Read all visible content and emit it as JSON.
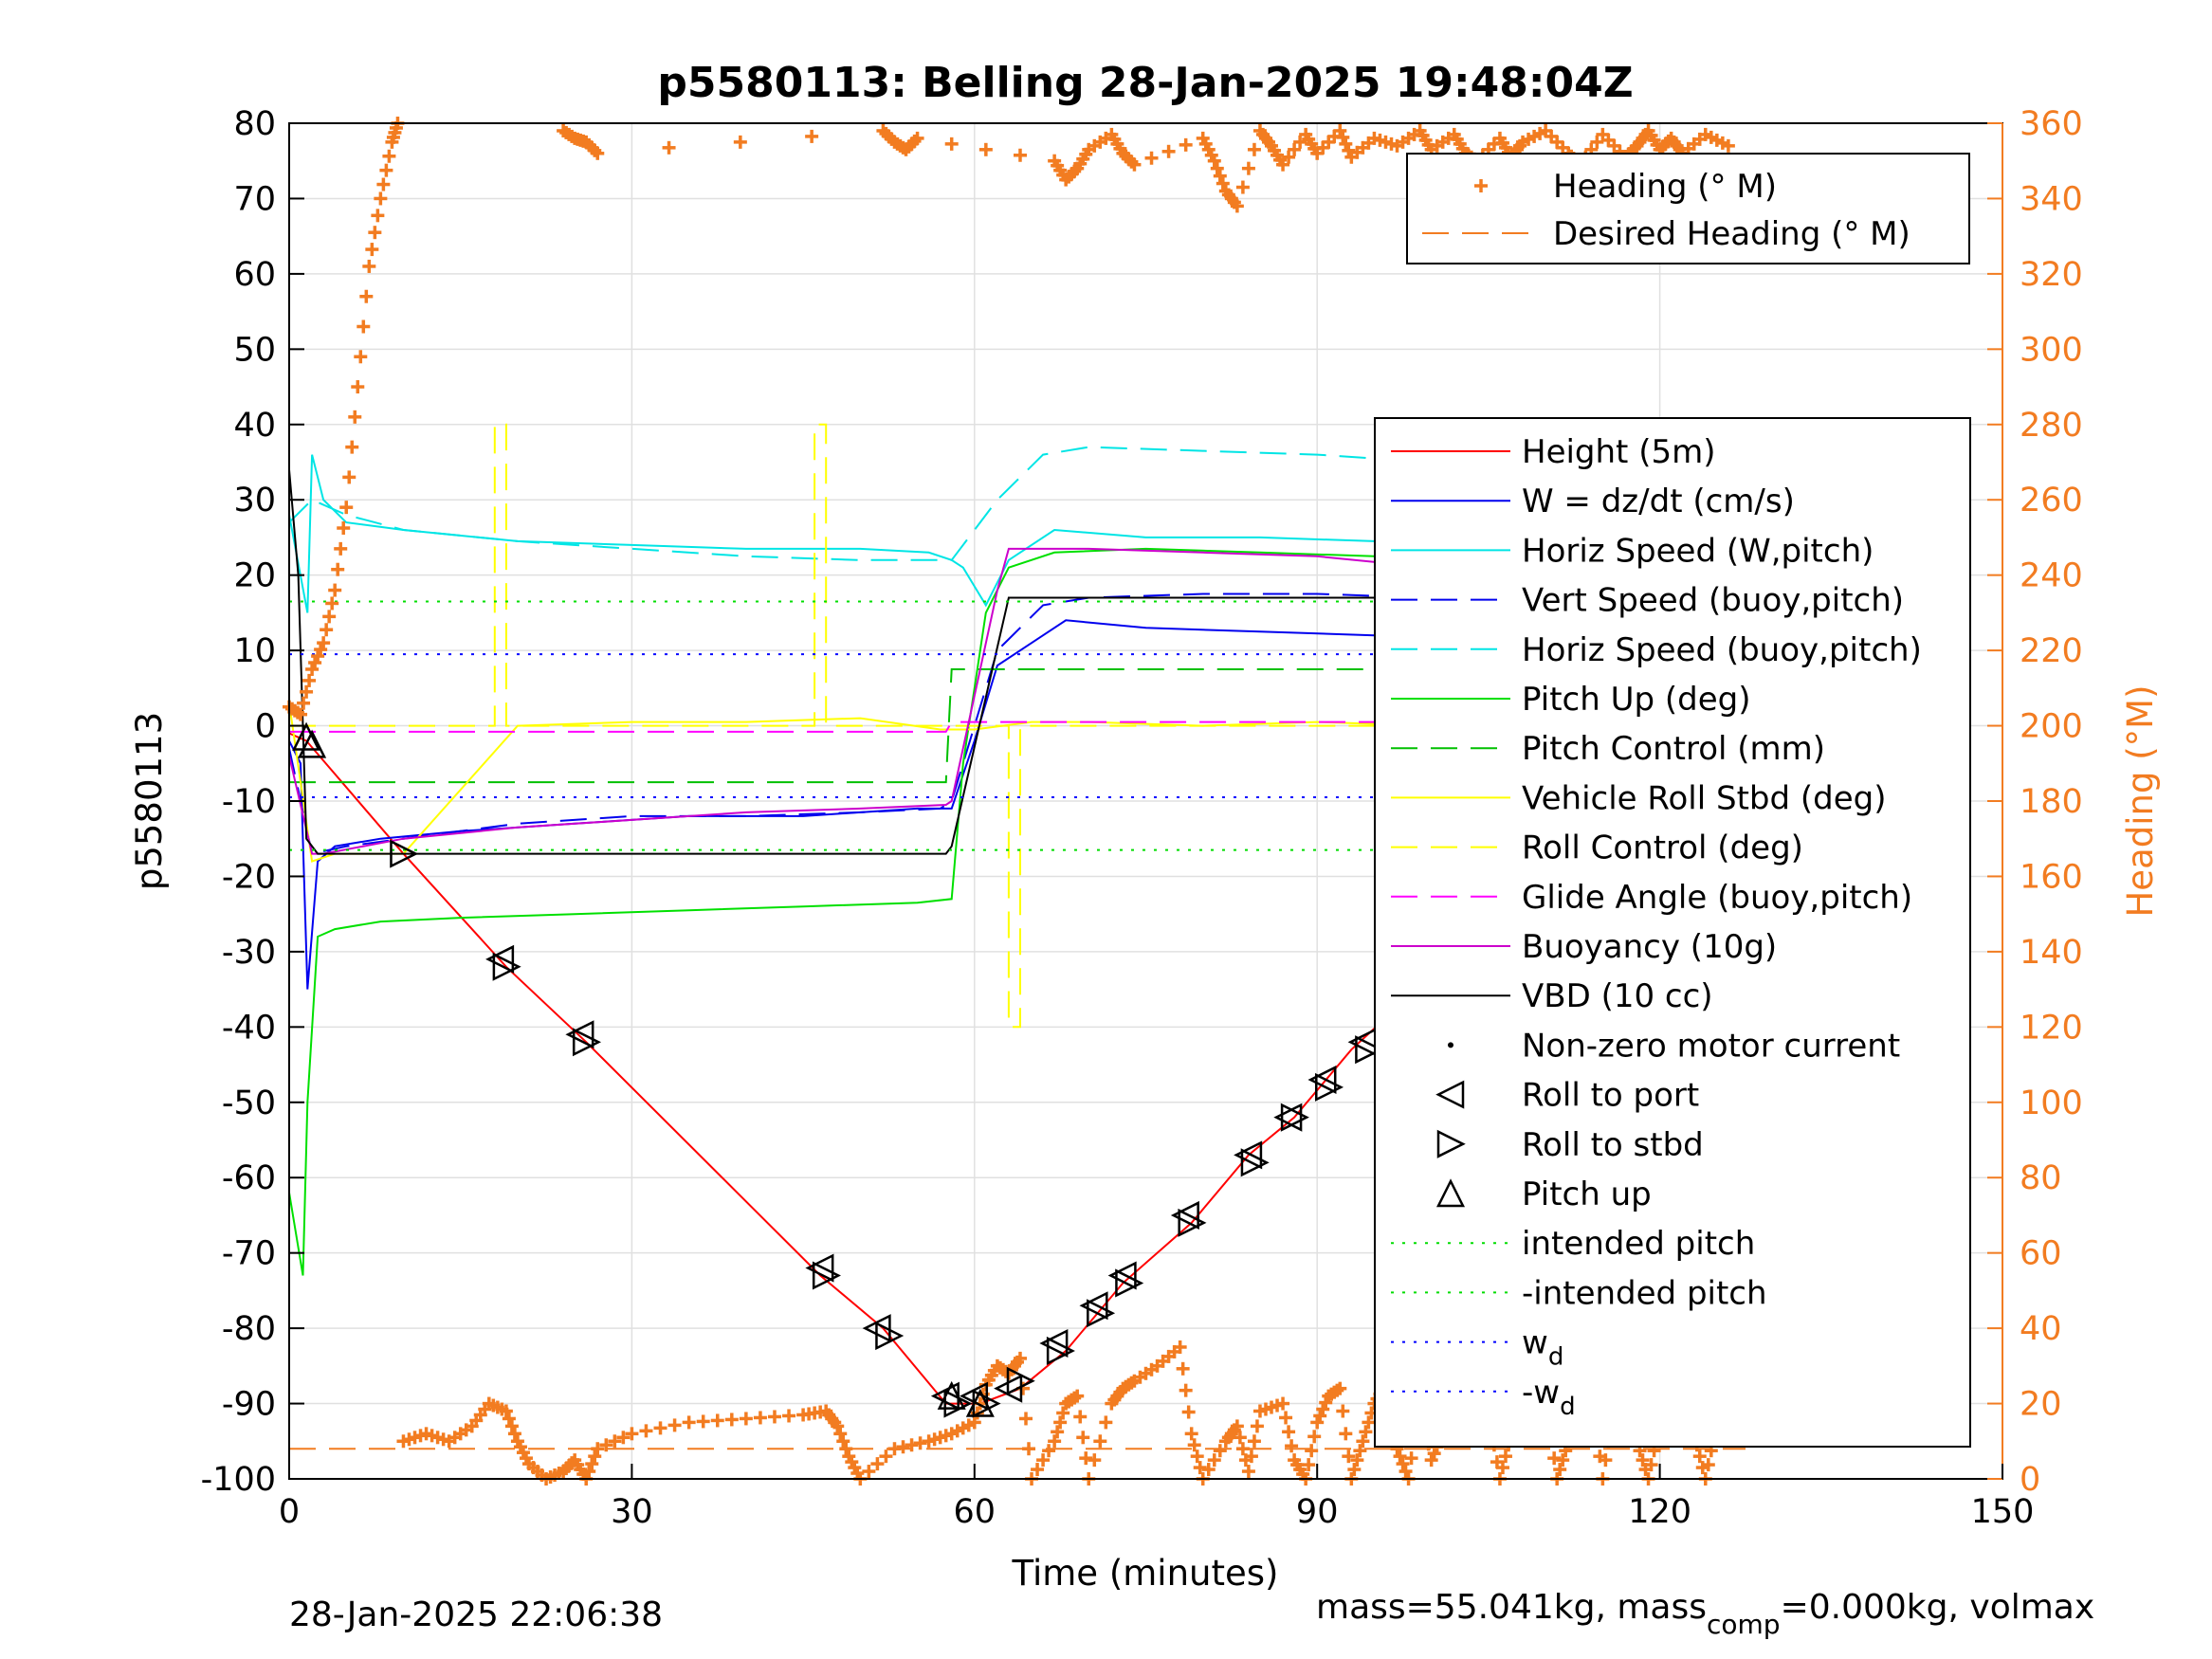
{
  "chart_data": {
    "type": "line",
    "title": "p5580113: Belling 28-Jan-2025 19:48:04Z",
    "xlabel": "Time (minutes)",
    "ylabel": "p5580113",
    "ylabel_right": "Heading (°M)",
    "xlim": [
      0,
      150
    ],
    "ylim": [
      -100,
      80
    ],
    "ylim_right": [
      0,
      360
    ],
    "x_ticks": [
      0,
      30,
      60,
      90,
      120,
      150
    ],
    "y_ticks": [
      80,
      70,
      60,
      50,
      40,
      30,
      20,
      10,
      0,
      -10,
      -20,
      -30,
      -40,
      -50,
      -60,
      -70,
      -80,
      -90,
      -100
    ],
    "y_ticks_right": [
      360,
      340,
      320,
      300,
      280,
      260,
      240,
      220,
      200,
      180,
      160,
      140,
      120,
      100,
      80,
      60,
      40,
      20,
      0
    ],
    "grid": true,
    "colors": {
      "height": "#ff0000",
      "w": "#0000ee",
      "horiz_w": "#00e5e5",
      "vert_buoy": "#0000ee",
      "horiz_buoy": "#00e5e5",
      "pitch": "#00e000",
      "pitch_ctl": "#00c000",
      "roll": "#ffff00",
      "roll_ctl": "#ffff00",
      "glide": "#ff00ff",
      "buoy": "#cc00cc",
      "vbd": "#000000",
      "heading": "#f27c21",
      "intended": "#00dd00",
      "wd": "#0000ff"
    },
    "heading_legend": [
      {
        "label": "Heading (° M)",
        "style": "marker-plus"
      },
      {
        "label": "Desired Heading (° M)",
        "style": "dashed"
      }
    ],
    "legend": [
      {
        "label": "Height (5m)",
        "style": "solid",
        "color": "#ff0000"
      },
      {
        "label": "W = dz/dt (cm/s)",
        "style": "solid",
        "color": "#0000ee"
      },
      {
        "label": "Horiz Speed (W,pitch)",
        "style": "solid",
        "color": "#00e5e5"
      },
      {
        "label": "Vert Speed (buoy,pitch)",
        "style": "dashed",
        "color": "#0000ee"
      },
      {
        "label": "Horiz Speed (buoy,pitch)",
        "style": "dashed",
        "color": "#00e5e5"
      },
      {
        "label": "Pitch Up (deg)",
        "style": "solid",
        "color": "#00e000"
      },
      {
        "label": "Pitch Control (mm)",
        "style": "dashed",
        "color": "#00c000"
      },
      {
        "label": "Vehicle Roll Stbd (deg)",
        "style": "solid",
        "color": "#ffff00"
      },
      {
        "label": "Roll Control (deg)",
        "style": "dashed",
        "color": "#ffff00"
      },
      {
        "label": "Glide Angle (buoy,pitch)",
        "style": "dashed",
        "color": "#ff00ff"
      },
      {
        "label": "Buoyancy (10g)",
        "style": "solid",
        "color": "#cc00cc"
      },
      {
        "label": "VBD (10 cc)",
        "style": "solid",
        "color": "#000000"
      },
      {
        "label": "Non-zero motor current",
        "style": "dot",
        "color": "#000000"
      },
      {
        "label": "Roll to port",
        "style": "tri-left",
        "color": "#000000"
      },
      {
        "label": "Roll to stbd",
        "style": "tri-right",
        "color": "#000000"
      },
      {
        "label": "Pitch up",
        "style": "tri-up",
        "color": "#000000"
      },
      {
        "label": "intended pitch",
        "style": "dotted",
        "color": "#00dd00"
      },
      {
        "label": "-intended pitch",
        "style": "dotted",
        "color": "#00dd00"
      },
      {
        "label": "w",
        "sub": "d",
        "style": "dotted",
        "color": "#0000ff"
      },
      {
        "label": "-w",
        "sub": "d",
        "style": "dotted",
        "color": "#0000ff"
      }
    ],
    "series": [
      {
        "name": "Height (5m)",
        "x": [
          0,
          1.5,
          10,
          19,
          26,
          46.5,
          52,
          57.5,
          60.5,
          64,
          68,
          73,
          79,
          84,
          88,
          93,
          98,
          104,
          110,
          116,
          121,
          127.5
        ],
        "y": [
          -1,
          -2,
          -17,
          -32,
          -42,
          -73,
          -80,
          -90,
          -90,
          -88,
          -83,
          -74,
          -66,
          -57,
          -52,
          -43,
          -36,
          -29,
          -21,
          -14,
          -8,
          0
        ]
      },
      {
        "name": "W = dz/dt (cm/s)",
        "x": [
          0,
          1,
          1.6,
          2.5,
          4,
          8,
          15,
          25,
          35,
          45,
          55,
          58,
          60,
          62,
          65,
          68,
          75,
          85,
          95,
          105,
          110,
          115,
          120,
          125,
          127
        ],
        "y": [
          -2,
          -5,
          -35,
          -18,
          -16,
          -15,
          -14,
          -13,
          -12,
          -12,
          -11,
          -11,
          -2,
          8,
          11,
          14,
          13,
          12.5,
          12,
          11,
          10.5,
          10,
          10,
          10,
          9
        ]
      },
      {
        "name": "Horiz Speed (W,pitch)",
        "x": [
          0,
          1.6,
          2,
          3,
          5,
          10,
          20,
          30,
          40,
          50,
          56,
          58,
          59,
          61,
          63,
          67,
          75,
          85,
          95,
          105,
          115,
          120,
          127
        ],
        "y": [
          28,
          15,
          36,
          30,
          27,
          26,
          24.5,
          24,
          23.5,
          23.5,
          23,
          22,
          21,
          16,
          22,
          26,
          25,
          25,
          24.5,
          23.5,
          22.5,
          22,
          21
        ]
      },
      {
        "name": "Vert Speed (buoy,pitch)",
        "x": [
          0,
          2,
          5,
          10,
          20,
          30,
          40,
          50,
          57,
          58,
          62,
          66,
          70,
          80,
          90,
          100,
          110,
          120,
          127
        ],
        "y": [
          -3,
          -17,
          -16,
          -15,
          -13,
          -12,
          -12,
          -11.5,
          -11,
          -10,
          10,
          16,
          17,
          17.5,
          17.5,
          17,
          16,
          15,
          14
        ]
      },
      {
        "name": "Horiz Speed (buoy,pitch)",
        "x": [
          0,
          2,
          5,
          10,
          20,
          30,
          40,
          50,
          57,
          58,
          62,
          66,
          70,
          80,
          90,
          100,
          110,
          120,
          127
        ],
        "y": [
          27,
          30,
          28,
          26,
          24.5,
          23.5,
          22.5,
          22,
          22,
          22,
          30,
          36,
          37,
          36.5,
          36,
          35,
          34,
          33,
          32
        ]
      },
      {
        "name": "Pitch Up (deg)",
        "x": [
          0,
          1.2,
          1.6,
          2.5,
          4,
          8,
          15,
          25,
          35,
          45,
          55,
          58,
          59,
          61,
          63,
          67,
          75,
          85,
          95,
          105,
          115,
          127
        ],
        "y": [
          -62,
          -73,
          -50,
          -28,
          -27,
          -26,
          -25.5,
          -25,
          -24.5,
          -24,
          -23.5,
          -23,
          -5,
          15,
          21,
          23,
          23.5,
          23,
          22.5,
          21.5,
          20.5,
          19
        ]
      },
      {
        "name": "Pitch Control (mm)",
        "x": [
          0,
          57.5,
          58,
          127.5
        ],
        "y": [
          -7.5,
          -7.5,
          7.5,
          7.5
        ]
      },
      {
        "name": "Vehicle Roll Stbd (deg)",
        "x": [
          0,
          2,
          4,
          10,
          20,
          30,
          40,
          50,
          57,
          60,
          65,
          70,
          80,
          90,
          100,
          110,
          120,
          127
        ],
        "y": [
          3,
          -18,
          -17,
          -17,
          0,
          0.5,
          0.5,
          1,
          -0.5,
          -0.5,
          0.5,
          0.5,
          0,
          0.5,
          0,
          0.5,
          0,
          0
        ]
      },
      {
        "name": "Roll Control (deg)",
        "x": [
          0,
          10,
          18,
          18,
          19,
          19,
          46,
          46,
          47,
          47,
          63,
          63,
          64,
          64,
          80,
          127
        ],
        "y": [
          0,
          0,
          0,
          40,
          40,
          0,
          0,
          40,
          40,
          0,
          0,
          -40,
          -40,
          0,
          0,
          0
        ]
      },
      {
        "name": "Glide Angle (buoy,pitch)",
        "x": [
          0,
          57.5,
          58,
          127.5
        ],
        "y": [
          -0.8,
          -0.8,
          0.5,
          0.5
        ]
      },
      {
        "name": "Buoyancy (10g)",
        "x": [
          0,
          2,
          3,
          10,
          20,
          30,
          40,
          50,
          57.5,
          58,
          62,
          63,
          70,
          80,
          90,
          100,
          110,
          120,
          127
        ],
        "y": [
          -4,
          -17,
          -17,
          -15,
          -13.5,
          -12.5,
          -11.5,
          -11,
          -10.5,
          -10,
          18,
          23.5,
          23.5,
          23,
          22.5,
          21,
          20,
          19.5,
          19
        ]
      },
      {
        "name": "VBD (10 cc)",
        "x": [
          0,
          0.8,
          1.5,
          2.5,
          57.5,
          58,
          63,
          127.5
        ],
        "y": [
          34,
          20,
          -15,
          -17,
          -17,
          -16,
          17,
          17
        ]
      },
      {
        "name": "intended pitch",
        "x": [
          0,
          127.5
        ],
        "y": [
          16.5,
          16.5
        ]
      },
      {
        "name": "-intended pitch",
        "x": [
          0,
          127.5
        ],
        "y": [
          -16.5,
          -16.5
        ]
      },
      {
        "name": "w_d",
        "x": [
          0,
          127.5
        ],
        "y": [
          9.5,
          9.5
        ]
      },
      {
        "name": "-w_d",
        "x": [
          0,
          127.5
        ],
        "y": [
          -9.5,
          -9.5
        ]
      },
      {
        "name": "Desired Heading (° M)",
        "axis": "right",
        "x": [
          0,
          127.5
        ],
        "y": [
          8,
          8
        ]
      }
    ],
    "heading_points": {
      "name": "Heading (° M)",
      "axis": "right",
      "x": [
        0,
        1,
        2,
        3,
        4,
        5,
        6,
        7,
        8,
        9,
        9.5,
        10,
        12,
        14,
        16,
        17.5,
        19,
        20,
        21,
        22.5,
        24,
        25,
        26,
        27,
        30,
        35,
        40,
        45,
        47,
        48,
        49,
        50,
        53,
        56,
        58,
        60,
        61,
        62,
        63,
        64,
        65,
        67,
        68,
        69,
        70,
        72,
        73,
        74,
        76,
        78,
        79,
        80,
        82,
        83,
        84,
        85,
        87,
        88,
        89,
        90,
        91,
        92,
        93,
        94,
        95,
        96,
        97,
        98,
        99,
        100,
        101,
        102,
        103,
        104,
        105,
        106,
        107,
        108,
        109,
        110,
        111,
        112,
        113,
        114,
        115,
        116,
        117,
        118,
        119,
        120,
        121,
        122,
        123,
        124,
        125,
        126,
        127
      ],
      "y": [
        205,
        203,
        215,
        222,
        236,
        258,
        290,
        322,
        340,
        355,
        360,
        10,
        12,
        10,
        14,
        20,
        18,
        10,
        4,
        0,
        2,
        5,
        0,
        8,
        12,
        15,
        16,
        17,
        18,
        14,
        6,
        0,
        8,
        10,
        12,
        15,
        25,
        30,
        28,
        32,
        0,
        10,
        20,
        22,
        0,
        20,
        24,
        26,
        30,
        35,
        12,
        0,
        10,
        14,
        2,
        18,
        20,
        5,
        0,
        15,
        22,
        24,
        0,
        10,
        20,
        25,
        8,
        0,
        22,
        5,
        12,
        25,
        30,
        34,
        18,
        0,
        12,
        26,
        32,
        22,
        0,
        10,
        20,
        24,
        0,
        20,
        28,
        10,
        0,
        15,
        18,
        24,
        12,
        0,
        15,
        20,
        16
      ]
    },
    "heading_top_points": {
      "axis": "right",
      "x": [
        24,
        25,
        26,
        27,
        52,
        53,
        54,
        55,
        67,
        68,
        69,
        70,
        72,
        73,
        74,
        80,
        81,
        82,
        83,
        85,
        86,
        87,
        89,
        90,
        92,
        93,
        95,
        97,
        99,
        100,
        102,
        103,
        104,
        106,
        107,
        108,
        110,
        112,
        113,
        115,
        117,
        118,
        119,
        120,
        121,
        122,
        124,
        126
      ],
      "y": [
        358,
        356,
        355,
        352,
        358,
        355,
        353,
        356,
        350,
        345,
        348,
        353,
        357,
        352,
        349,
        356,
        350,
        342,
        338,
        358,
        354,
        349,
        357,
        352,
        358,
        351,
        356,
        354,
        358,
        353,
        357,
        352,
        350,
        356,
        351,
        355,
        358,
        352,
        349,
        357,
        351,
        354,
        358,
        353,
        356,
        352,
        357,
        354
      ]
    },
    "markers_roll_port": {
      "x": [
        18.5,
        25.5,
        46.5,
        51.5,
        57.5,
        60,
        63,
        67,
        70.5,
        73,
        78.5,
        84,
        87.5,
        90.5,
        94,
        97,
        99.5,
        103,
        105.5,
        109,
        115.5,
        118,
        121,
        124,
        127
      ],
      "y": [
        -31,
        -41,
        -72,
        -80,
        -89,
        -89,
        -88,
        -82,
        -77,
        -73,
        -65,
        -57,
        -52,
        -47,
        -42,
        -37,
        -33,
        -28,
        -25,
        -20,
        -13,
        -10,
        -6,
        -3,
        0
      ]
    },
    "markers_roll_stbd": {
      "x": [
        10,
        19,
        26,
        47,
        52.5,
        58.5,
        61,
        64,
        67.5,
        71,
        73.5,
        79,
        84.5,
        88,
        91,
        94.5,
        97.5,
        100,
        104,
        106,
        109.5,
        116,
        118.5,
        121.5,
        124.5
      ],
      "y": [
        -17,
        -32,
        -42,
        -73,
        -81,
        -90,
        -90,
        -87,
        -83,
        -78,
        -74,
        -66,
        -58,
        -52,
        -48,
        -43,
        -37,
        -34,
        -29,
        -26,
        -21,
        -14,
        -11,
        -7,
        -4
      ]
    },
    "markers_pitch_up": {
      "x": [
        1.5,
        2,
        58,
        60.5
      ],
      "y": [
        -1.5,
        -2.5,
        -89,
        -90
      ]
    }
  },
  "footer": {
    "left": "28-Jan-2025 22:06:38",
    "right_prefix": "mass=55.041kg, mass",
    "right_sub": "comp",
    "right_suffix": "=0.000kg, volmax"
  }
}
